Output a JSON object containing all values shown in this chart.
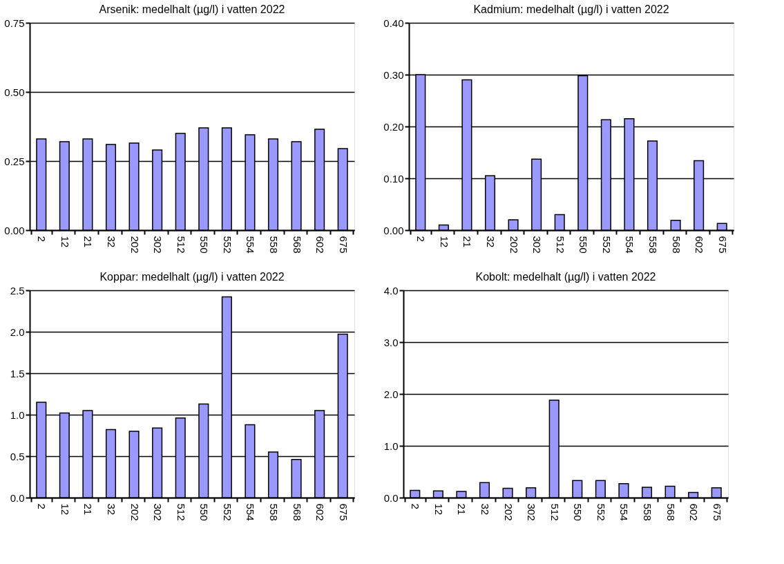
{
  "chart_data": [
    {
      "type": "bar",
      "title": "Arsenik: medelhalt (µg/l) i vatten 2022",
      "categories": [
        "2",
        "12",
        "21",
        "32",
        "202",
        "302",
        "512",
        "550",
        "552",
        "554",
        "558",
        "568",
        "602",
        "675"
      ],
      "values": [
        0.33,
        0.32,
        0.33,
        0.31,
        0.315,
        0.29,
        0.35,
        0.37,
        0.37,
        0.345,
        0.33,
        0.32,
        0.365,
        0.295
      ],
      "color": "#9999ff",
      "ylim": [
        0,
        0.75
      ],
      "yticks": [
        {
          "value": 0,
          "label": "0.00"
        },
        {
          "value": 0.25,
          "label": "0.25"
        },
        {
          "value": 0.5,
          "label": "0.50"
        },
        {
          "value": 0.75,
          "label": "0.75"
        }
      ],
      "grid": "y"
    },
    {
      "type": "bar",
      "title": "Kadmium: medelhalt (µg/l) i vatten 2022",
      "categories": [
        "2",
        "12",
        "21",
        "32",
        "202",
        "302",
        "512",
        "550",
        "552",
        "554",
        "558",
        "568",
        "602",
        "675"
      ],
      "values": [
        0.3,
        0.01,
        0.29,
        0.105,
        0.02,
        0.137,
        0.03,
        0.298,
        0.213,
        0.215,
        0.172,
        0.019,
        0.134,
        0.013
      ],
      "color": "#9999ff",
      "ylim": [
        0,
        0.4
      ],
      "yticks": [
        {
          "value": 0,
          "label": "0.00"
        },
        {
          "value": 0.1,
          "label": "0.10"
        },
        {
          "value": 0.2,
          "label": "0.20"
        },
        {
          "value": 0.3,
          "label": "0.30"
        },
        {
          "value": 0.4,
          "label": "0.40"
        }
      ],
      "grid": "y"
    },
    {
      "type": "bar",
      "title": "Koppar: medelhalt (µg/l) i vatten 2022",
      "categories": [
        "2",
        "12",
        "21",
        "32",
        "202",
        "302",
        "512",
        "550",
        "552",
        "554",
        "558",
        "568",
        "602",
        "675"
      ],
      "values": [
        1.15,
        1.02,
        1.05,
        0.82,
        0.8,
        0.84,
        0.96,
        1.13,
        2.42,
        0.88,
        0.55,
        0.46,
        1.05,
        1.97
      ],
      "color": "#9999ff",
      "ylim": [
        0,
        2.5
      ],
      "yticks": [
        {
          "value": 0,
          "label": "0.0"
        },
        0.5,
        {
          "value": 1,
          "label": "1.0"
        },
        1.5,
        {
          "value": 2,
          "label": "2.0"
        },
        2.5
      ],
      "grid": "y"
    },
    {
      "type": "bar",
      "title": "Kobolt: medelhalt (µg/l) i vatten 2022",
      "categories": [
        "2",
        "12",
        "21",
        "32",
        "202",
        "302",
        "512",
        "550",
        "552",
        "554",
        "558",
        "568",
        "602",
        "675"
      ],
      "values": [
        0.14,
        0.13,
        0.12,
        0.29,
        0.18,
        0.19,
        1.88,
        0.33,
        0.33,
        0.27,
        0.2,
        0.22,
        0.1,
        0.19
      ],
      "color": "#9999ff",
      "ylim": [
        0,
        4
      ],
      "yticks": [
        {
          "value": 0,
          "label": "0.0"
        },
        {
          "value": 1,
          "label": "1.0"
        },
        {
          "value": 2,
          "label": "2.0"
        },
        {
          "value": 3,
          "label": "3.0"
        },
        {
          "value": 4,
          "label": "4.0"
        }
      ],
      "grid": "y"
    }
  ]
}
